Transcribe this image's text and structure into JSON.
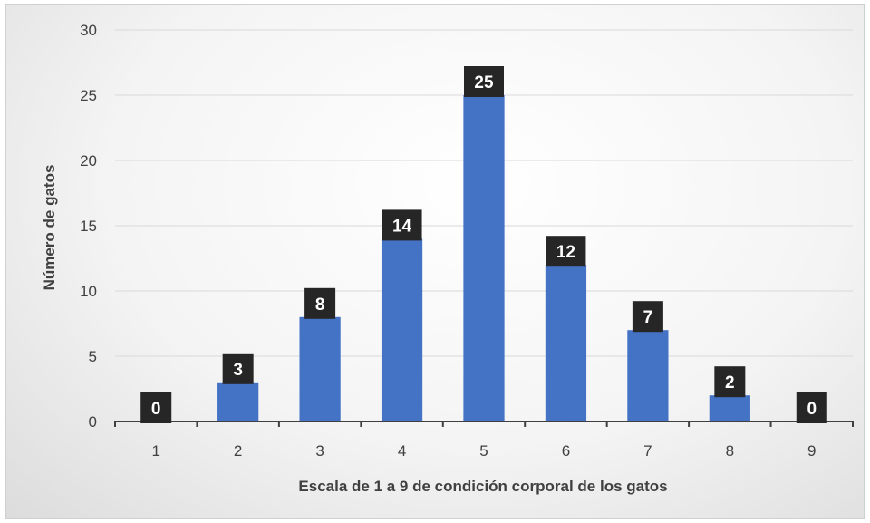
{
  "chart_data": {
    "type": "bar",
    "title": "",
    "categories": [
      "1",
      "2",
      "3",
      "4",
      "5",
      "6",
      "7",
      "8",
      "9"
    ],
    "values": [
      0,
      3,
      8,
      14,
      25,
      12,
      7,
      2,
      0
    ],
    "xlabel": "Escala de 1 a 9 de condición corporal de los gatos",
    "ylabel": "Número de gatos",
    "ylim": [
      0,
      30
    ],
    "yticks": [
      0,
      5,
      10,
      15,
      20,
      25,
      30
    ],
    "grid": true,
    "legend": "none",
    "colors": {
      "bar": "#4472C4",
      "data_label_bg": "#262626",
      "data_label_text": "#ffffff",
      "gridline": "#d9d9d9",
      "axis": "#404040"
    }
  }
}
